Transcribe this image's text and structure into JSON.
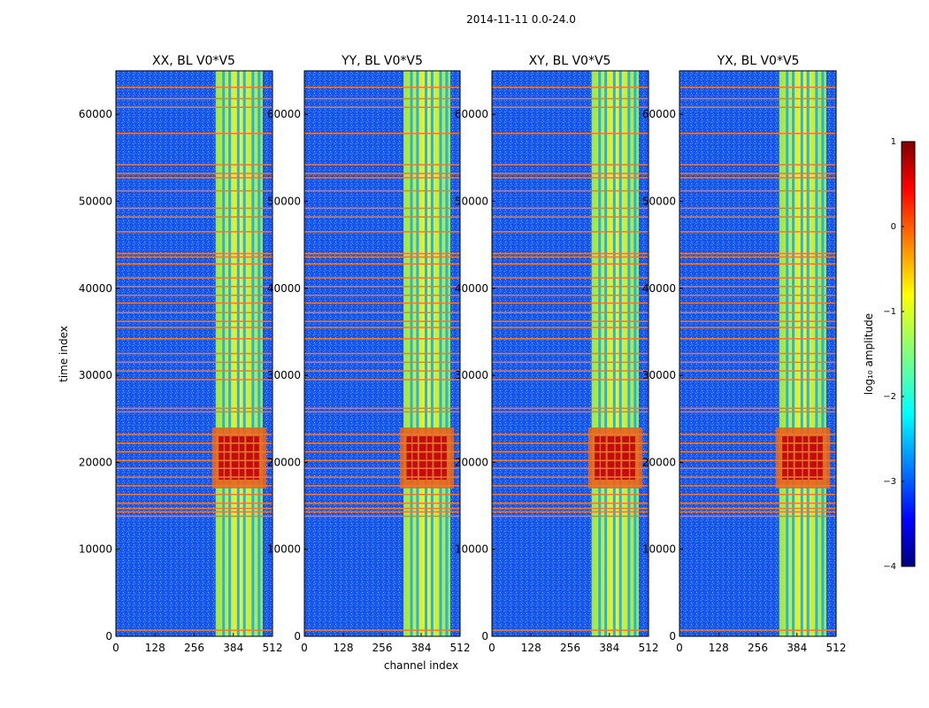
{
  "figure": {
    "suptitle": "2014-11-11 0.0-24.0"
  },
  "chart_data": [
    {
      "type": "heatmap",
      "title": "XX, BL V0*V5",
      "xlabel": "channel index",
      "ylabel": "time index",
      "xlim": [
        0,
        512
      ],
      "ylim": [
        0,
        65000
      ],
      "x_ticks": [
        "0",
        "128",
        "256",
        "384",
        "512"
      ],
      "y_ticks": [
        "0",
        "10000",
        "20000",
        "30000",
        "40000",
        "50000",
        "60000"
      ],
      "rfi_channel_band": [
        326,
        480
      ],
      "strong_burst_time": [
        17000,
        24000
      ]
    },
    {
      "type": "heatmap",
      "title": "YY, BL V0*V5",
      "xlabel": "channel index",
      "ylabel": "",
      "xlim": [
        0,
        512
      ],
      "ylim": [
        0,
        65000
      ],
      "x_ticks": [
        "0",
        "128",
        "256",
        "384",
        "512"
      ],
      "y_ticks": [
        "0",
        "10000",
        "20000",
        "30000",
        "40000",
        "50000",
        "60000"
      ],
      "rfi_channel_band": [
        326,
        480
      ],
      "strong_burst_time": [
        17000,
        24000
      ]
    },
    {
      "type": "heatmap",
      "title": "XY, BL V0*V5",
      "xlabel": "",
      "ylabel": "",
      "xlim": [
        0,
        512
      ],
      "ylim": [
        0,
        65000
      ],
      "x_ticks": [
        "0",
        "128",
        "256",
        "384",
        "512"
      ],
      "y_ticks": [
        "0",
        "10000",
        "20000",
        "30000",
        "40000",
        "50000",
        "60000"
      ],
      "rfi_channel_band": [
        326,
        480
      ],
      "strong_burst_time": [
        17000,
        24000
      ]
    },
    {
      "type": "heatmap",
      "title": "YX, BL V0*V5",
      "xlabel": "",
      "ylabel": "",
      "xlim": [
        0,
        512
      ],
      "ylim": [
        0,
        65000
      ],
      "x_ticks": [
        "0",
        "128",
        "256",
        "384",
        "512"
      ],
      "y_ticks": [
        "0",
        "10000",
        "20000",
        "30000",
        "40000",
        "50000",
        "60000"
      ],
      "rfi_channel_band": [
        326,
        480
      ],
      "strong_burst_time": [
        17000,
        24000
      ]
    }
  ],
  "colorbar": {
    "label": "log₁₀ amplitude",
    "range": [
      -4,
      1
    ],
    "ticks": [
      {
        "value": 1,
        "label": "1"
      },
      {
        "value": 0,
        "label": "0"
      },
      {
        "value": -1,
        "label": "−1"
      },
      {
        "value": -2,
        "label": "−2"
      },
      {
        "value": -3,
        "label": "−3"
      },
      {
        "value": -4,
        "label": "−4"
      }
    ],
    "colormap": "jet"
  },
  "shared": {
    "flagged_time_rows": [
      700,
      13800,
      14300,
      14700,
      15300,
      16300,
      17300,
      18300,
      19300,
      20200,
      21200,
      22200,
      23200,
      25800,
      26200,
      29500,
      30500,
      31500,
      32500,
      34200,
      35500,
      36200,
      37200,
      38300,
      39200,
      40200,
      41200,
      42800,
      43600,
      44000,
      46500,
      48200,
      49200,
      51200,
      52700,
      53200,
      54200,
      57800,
      60800,
      61800,
      63100
    ],
    "flag_color": "#f07830"
  }
}
